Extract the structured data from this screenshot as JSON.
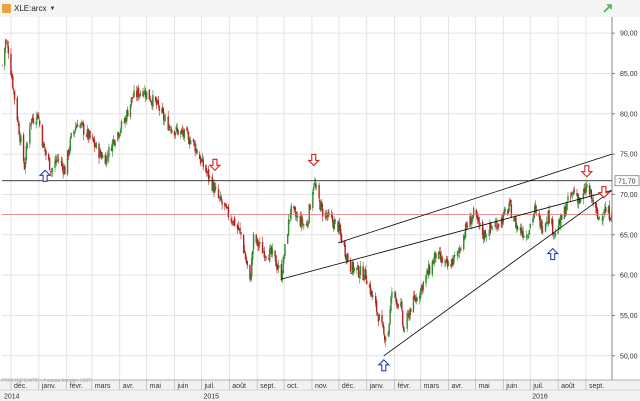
{
  "header": {
    "ticker": "XLE:arcx",
    "caret": "▼"
  },
  "watermark": "PRIX INDICATIF - Fuseau horaire: GMT",
  "colors": {
    "up": "#2e8b2e",
    "down": "#b01e1e",
    "trendline": "#000000",
    "grid": "#e4e4e4",
    "red_line": "#e07070",
    "arrow_up": "#2a3fb0",
    "arrow_down": "#d42020"
  },
  "chart_data": {
    "type": "candlestick",
    "ylim": [
      47,
      92
    ],
    "y_ticks": [
      "90,00",
      "85,00",
      "80,00",
      "75,00",
      "70,00",
      "65,00",
      "60,00",
      "55,00",
      "50,00"
    ],
    "x_date_range": [
      "2014-11-21",
      "2016-09-30"
    ],
    "months": [
      {
        "label": "déc.",
        "date": "2014-12-01"
      },
      {
        "label": "janv.",
        "date": "2015-01-01"
      },
      {
        "label": "févr.",
        "date": "2015-02-01"
      },
      {
        "label": "mars",
        "date": "2015-03-01"
      },
      {
        "label": "avr.",
        "date": "2015-04-01"
      },
      {
        "label": "mai",
        "date": "2015-05-01"
      },
      {
        "label": "juin",
        "date": "2015-06-01"
      },
      {
        "label": "juil.",
        "date": "2015-07-01"
      },
      {
        "label": "août",
        "date": "2015-08-01"
      },
      {
        "label": "sept.",
        "date": "2015-09-01"
      },
      {
        "label": "oct.",
        "date": "2015-10-01"
      },
      {
        "label": "nov.",
        "date": "2015-11-01"
      },
      {
        "label": "déc.",
        "date": "2015-12-01"
      },
      {
        "label": "janv.",
        "date": "2016-01-01"
      },
      {
        "label": "févr.",
        "date": "2016-02-01"
      },
      {
        "label": "mars",
        "date": "2016-03-01"
      },
      {
        "label": "avr.",
        "date": "2016-04-01"
      },
      {
        "label": "mai",
        "date": "2016-05-01"
      },
      {
        "label": "juin",
        "date": "2016-06-01"
      },
      {
        "label": "juil.",
        "date": "2016-07-01"
      },
      {
        "label": "août",
        "date": "2016-08-01"
      },
      {
        "label": "sept.",
        "date": "2016-09-01"
      }
    ],
    "years": [
      {
        "label": "2014",
        "date": "2014-11-21"
      },
      {
        "label": "2015",
        "date": "2015-07-01"
      },
      {
        "label": "2016",
        "date": "2016-07-01"
      }
    ],
    "price_anchors": [
      [
        "2014-11-21",
        86
      ],
      [
        "2014-11-25",
        89
      ],
      [
        "2014-11-28",
        88
      ],
      [
        "2014-12-05",
        82
      ],
      [
        "2014-12-10",
        78
      ],
      [
        "2014-12-16",
        73.5
      ],
      [
        "2014-12-22",
        79
      ],
      [
        "2014-12-31",
        80
      ],
      [
        "2015-01-06",
        76
      ],
      [
        "2015-01-15",
        73
      ],
      [
        "2015-01-22",
        74.5
      ],
      [
        "2015-01-30",
        73
      ],
      [
        "2015-02-06",
        77
      ],
      [
        "2015-02-13",
        79
      ],
      [
        "2015-02-20",
        78
      ],
      [
        "2015-03-02",
        76.5
      ],
      [
        "2015-03-10",
        75
      ],
      [
        "2015-03-17",
        74.5
      ],
      [
        "2015-03-26",
        77
      ],
      [
        "2015-04-06",
        79
      ],
      [
        "2015-04-15",
        82
      ],
      [
        "2015-04-27",
        83
      ],
      [
        "2015-05-05",
        82
      ],
      [
        "2015-05-13",
        81
      ],
      [
        "2015-05-22",
        79
      ],
      [
        "2015-06-01",
        78
      ],
      [
        "2015-06-10",
        77.5
      ],
      [
        "2015-06-22",
        76.5
      ],
      [
        "2015-07-01",
        74
      ],
      [
        "2015-07-10",
        72
      ],
      [
        "2015-07-20",
        69.5
      ],
      [
        "2015-07-31",
        67.5
      ],
      [
        "2015-08-07",
        66.5
      ],
      [
        "2015-08-14",
        65
      ],
      [
        "2015-08-21",
        61
      ],
      [
        "2015-08-24",
        59
      ],
      [
        "2015-08-28",
        64.5
      ],
      [
        "2015-09-08",
        63
      ],
      [
        "2015-09-18",
        62.5
      ],
      [
        "2015-09-28",
        60
      ],
      [
        "2015-10-08",
        68
      ],
      [
        "2015-10-16",
        67
      ],
      [
        "2015-10-26",
        66
      ],
      [
        "2015-11-03",
        71.5
      ],
      [
        "2015-11-12",
        68
      ],
      [
        "2015-11-20",
        67
      ],
      [
        "2015-11-30",
        66
      ],
      [
        "2015-12-08",
        63
      ],
      [
        "2015-12-14",
        61
      ],
      [
        "2015-12-22",
        60.5
      ],
      [
        "2015-12-31",
        60
      ],
      [
        "2016-01-08",
        57
      ],
      [
        "2016-01-14",
        55
      ],
      [
        "2016-01-20",
        52.5
      ],
      [
        "2016-01-25",
        53
      ],
      [
        "2016-01-29",
        58
      ],
      [
        "2016-02-08",
        56
      ],
      [
        "2016-02-11",
        53
      ],
      [
        "2016-02-19",
        56
      ],
      [
        "2016-02-29",
        58
      ],
      [
        "2016-03-08",
        60
      ],
      [
        "2016-03-18",
        62.5
      ],
      [
        "2016-03-31",
        61
      ],
      [
        "2016-04-11",
        62.5
      ],
      [
        "2016-04-21",
        66
      ],
      [
        "2016-04-29",
        67.5
      ],
      [
        "2016-05-10",
        65
      ],
      [
        "2016-05-20",
        66
      ],
      [
        "2016-05-31",
        67
      ],
      [
        "2016-06-08",
        68.5
      ],
      [
        "2016-06-16",
        66
      ],
      [
        "2016-06-27",
        65
      ],
      [
        "2016-07-06",
        68
      ],
      [
        "2016-07-14",
        66
      ],
      [
        "2016-07-21",
        67.5
      ],
      [
        "2016-07-29",
        65
      ],
      [
        "2016-08-05",
        67
      ],
      [
        "2016-08-12",
        69
      ],
      [
        "2016-08-19",
        70.5
      ],
      [
        "2016-08-26",
        69
      ],
      [
        "2016-09-02",
        71
      ],
      [
        "2016-09-09",
        69
      ],
      [
        "2016-09-14",
        67
      ],
      [
        "2016-09-21",
        68
      ],
      [
        "2016-09-30",
        67.5
      ]
    ],
    "horizontal_lines": [
      {
        "value": 71.7,
        "label": "71,70",
        "color": "#000000"
      },
      {
        "value": 67.5,
        "label": "",
        "color": "#e07070"
      }
    ],
    "trendlines": [
      {
        "from": [
          "2015-09-28",
          59.5
        ],
        "to": [
          "2016-09-30",
          70.5
        ]
      },
      {
        "from": [
          "2015-11-30",
          64
        ],
        "to": [
          "2016-09-30",
          75
        ]
      },
      {
        "from": [
          "2016-01-20",
          50
        ],
        "to": [
          "2016-09-30",
          70.5
        ]
      }
    ],
    "arrows": [
      {
        "dir": "up",
        "date": "2015-01-08",
        "value": 73
      },
      {
        "dir": "down",
        "date": "2015-07-16",
        "value": 73
      },
      {
        "dir": "down",
        "date": "2015-11-03",
        "value": 73.6
      },
      {
        "dir": "up",
        "date": "2016-01-20",
        "value": 49.5
      },
      {
        "dir": "up",
        "date": "2016-07-26",
        "value": 63.3
      },
      {
        "dir": "down",
        "date": "2016-09-02",
        "value": 72.2
      },
      {
        "dir": "down",
        "date": "2016-09-21",
        "value": 69.6
      }
    ]
  }
}
